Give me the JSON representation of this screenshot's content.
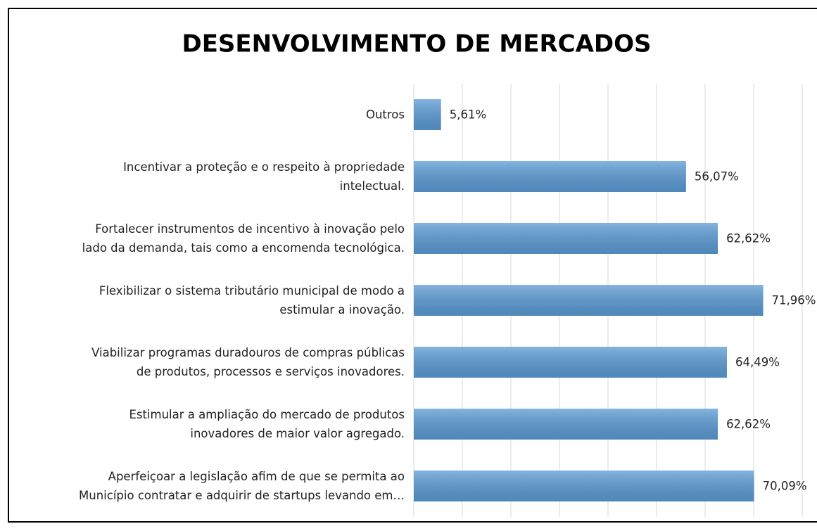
{
  "chart_data": {
    "type": "bar",
    "orientation": "horizontal",
    "title": "DESENVOLVIMENTO DE MERCADOS",
    "categories": [
      "Outros",
      "Incentivar a proteção e o respeito à propriedade\nintelectual.",
      "Fortalecer instrumentos de incentivo à inovação pelo\nlado da demanda, tais como a encomenda tecnológica.",
      "Flexibilizar o sistema tributário municipal de modo a\nestimular a inovação.",
      "Viabilizar programas duradouros de compras públicas\nde produtos, processos e serviços inovadores.",
      "Estimular a ampliação do mercado de produtos\ninovadores de maior valor agregado.",
      "Aperfeiçoar a legislação afim de que se permita ao\nMunicípio contratar e adquirir de startups levando em…"
    ],
    "values": [
      5.61,
      56.07,
      62.62,
      71.96,
      64.49,
      62.62,
      70.09
    ],
    "value_labels": [
      "5,61%",
      "56,07%",
      "62,62%",
      "71,96%",
      "64,49%",
      "62,62%",
      "70,09%"
    ],
    "color": "#5b9bd5",
    "xlim": [
      0,
      80
    ],
    "xticks": [
      0,
      10,
      20,
      30,
      40,
      50,
      60,
      70,
      80
    ],
    "grid": true
  }
}
